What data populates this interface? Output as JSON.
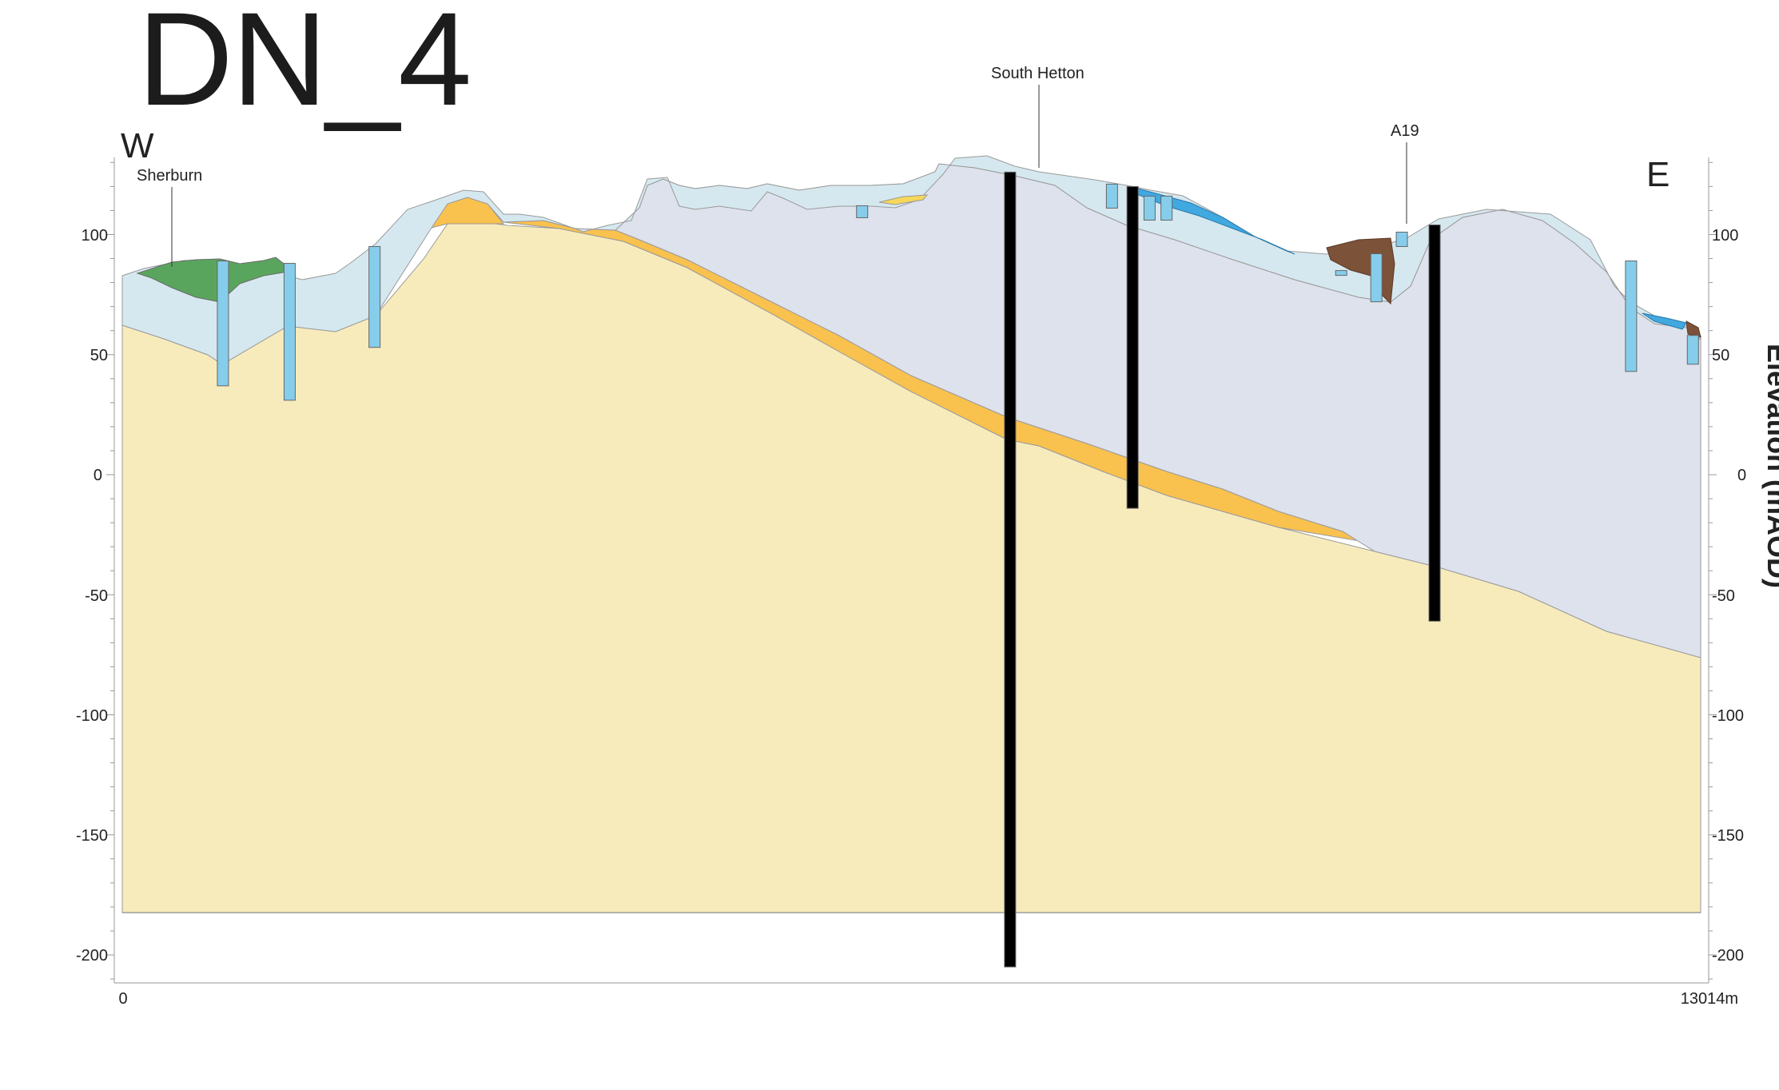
{
  "section": {
    "title": "DN_4",
    "west_label": "W",
    "east_label": "E",
    "axis_title": "Elevation (mAOD)",
    "x_start_label": "0",
    "x_end_label": "13014m"
  },
  "locations": [
    {
      "name": "Sherburn"
    },
    {
      "name": "South Hetton"
    },
    {
      "name": "A19"
    }
  ],
  "y_ticks": [
    "100",
    "50",
    "0",
    "-50",
    "-100",
    "-150",
    "-200"
  ],
  "colors": {
    "bedrock_sandstone": "#f7ebbc",
    "orange_unit": "#f9c14e",
    "limestone_unit": "#dde2ec",
    "superficial": "#d6e8ef",
    "green_unit": "#5aa55e",
    "brown_unit": "#7c5239",
    "blue_unit": "#41a8e0",
    "borehole_black": "#000000",
    "borehole_blue": "#86cdeb",
    "borehole_grey": "#ececec",
    "borehole_yellow": "#f6cb1b"
  },
  "chart_data": {
    "type": "cross-section",
    "title": "DN_4",
    "xlabel": "",
    "ylabel": "Elevation (mAOD)",
    "xlim": [
      0,
      13014
    ],
    "ylim": [
      -210,
      130
    ],
    "y_ticks": [
      100,
      50,
      0,
      -50,
      -100,
      -150,
      -200
    ],
    "boreholes": [
      {
        "x": 830,
        "top": 89,
        "base": 37
      },
      {
        "x": 1380,
        "top": 88,
        "base": 31
      },
      {
        "x": 2080,
        "top": 95,
        "base": 53
      },
      {
        "x": 6100,
        "top": 112,
        "base": 107
      },
      {
        "x": 7320,
        "top": 126,
        "base": -205
      },
      {
        "x": 8160,
        "top": 121,
        "base": 111
      },
      {
        "x": 8330,
        "top": 120,
        "base": -14
      },
      {
        "x": 8470,
        "top": 116,
        "base": 106
      },
      {
        "x": 8610,
        "top": 116,
        "base": 106
      },
      {
        "x": 10050,
        "top": 85,
        "base": 83
      },
      {
        "x": 10340,
        "top": 92,
        "base": 72
      },
      {
        "x": 10550,
        "top": 101,
        "base": 95
      },
      {
        "x": 10820,
        "top": 104,
        "base": -61
      },
      {
        "x": 12440,
        "top": 89,
        "base": 43
      },
      {
        "x": 12950,
        "top": 58,
        "base": 46
      }
    ]
  }
}
